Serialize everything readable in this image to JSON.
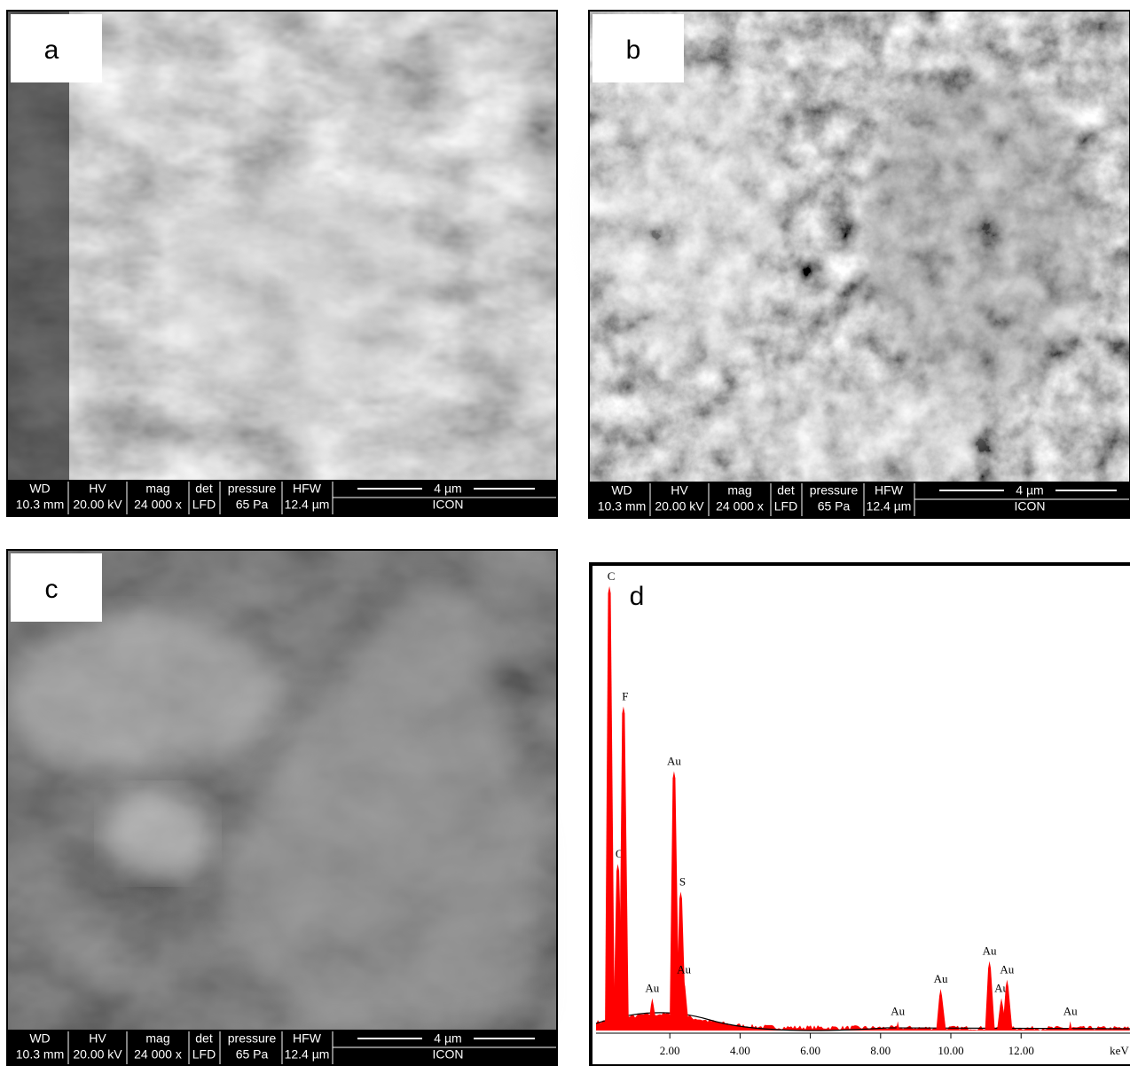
{
  "panels": [
    {
      "label": "a",
      "info": {
        "headers": [
          "WD",
          "HV",
          "mag",
          "det",
          "pressure",
          "HFW"
        ],
        "values": [
          "10.3 mm",
          "20.00 kV",
          "24 000 x",
          "LFD",
          "65 Pa",
          "12.4 µm"
        ],
        "scale": "4 µm",
        "software": "ICON"
      }
    },
    {
      "label": "b",
      "info": {
        "headers": [
          "WD",
          "HV",
          "mag",
          "det",
          "pressure",
          "HFW"
        ],
        "values": [
          "10.3 mm",
          "20.00 kV",
          "24 000 x",
          "LFD",
          "65 Pa",
          "12.4 µm"
        ],
        "scale": "4 µm",
        "software": "ICON"
      }
    },
    {
      "label": "c",
      "info": {
        "headers": [
          "WD",
          "HV",
          "mag",
          "det",
          "pressure",
          "HFW"
        ],
        "values": [
          "10.3 mm",
          "20.00 kV",
          "24 000 x",
          "LFD",
          "65 Pa",
          "12.4 µm"
        ],
        "scale": "4 µm",
        "software": "ICON"
      }
    }
  ],
  "spectrum": {
    "type": "spectrum",
    "label": "d",
    "x_unit": "keV",
    "xlim": [
      -0.1,
      15.1
    ],
    "ylim": [
      0,
      100
    ],
    "xticks": [
      {
        "value": 2,
        "label": "2.00"
      },
      {
        "value": 4,
        "label": "4.00"
      },
      {
        "value": 6,
        "label": "6.00"
      },
      {
        "value": 8,
        "label": "8.00"
      },
      {
        "value": 10,
        "label": "10.00"
      },
      {
        "value": 12,
        "label": "12.00"
      }
    ],
    "color": "#ff0000",
    "peaks": [
      {
        "element": "C",
        "energy": 0.28,
        "height": 96
      },
      {
        "element": "O",
        "energy": 0.52,
        "height": 36
      },
      {
        "element": "F",
        "energy": 0.68,
        "height": 70
      },
      {
        "element": "Au",
        "energy": 1.5,
        "height": 7
      },
      {
        "element": "Au",
        "energy": 2.12,
        "height": 56
      },
      {
        "element": "S",
        "energy": 2.31,
        "height": 30
      },
      {
        "element": "Au",
        "energy": 2.4,
        "height": 11
      },
      {
        "element": "Au",
        "energy": 8.49,
        "height": 2
      },
      {
        "element": "Au",
        "energy": 9.71,
        "height": 9
      },
      {
        "element": "Au",
        "energy": 11.1,
        "height": 15
      },
      {
        "element": "Au",
        "energy": 11.44,
        "height": 7
      },
      {
        "element": "Au",
        "energy": 11.6,
        "height": 11
      },
      {
        "element": "Au",
        "energy": 13.4,
        "height": 2
      }
    ]
  }
}
